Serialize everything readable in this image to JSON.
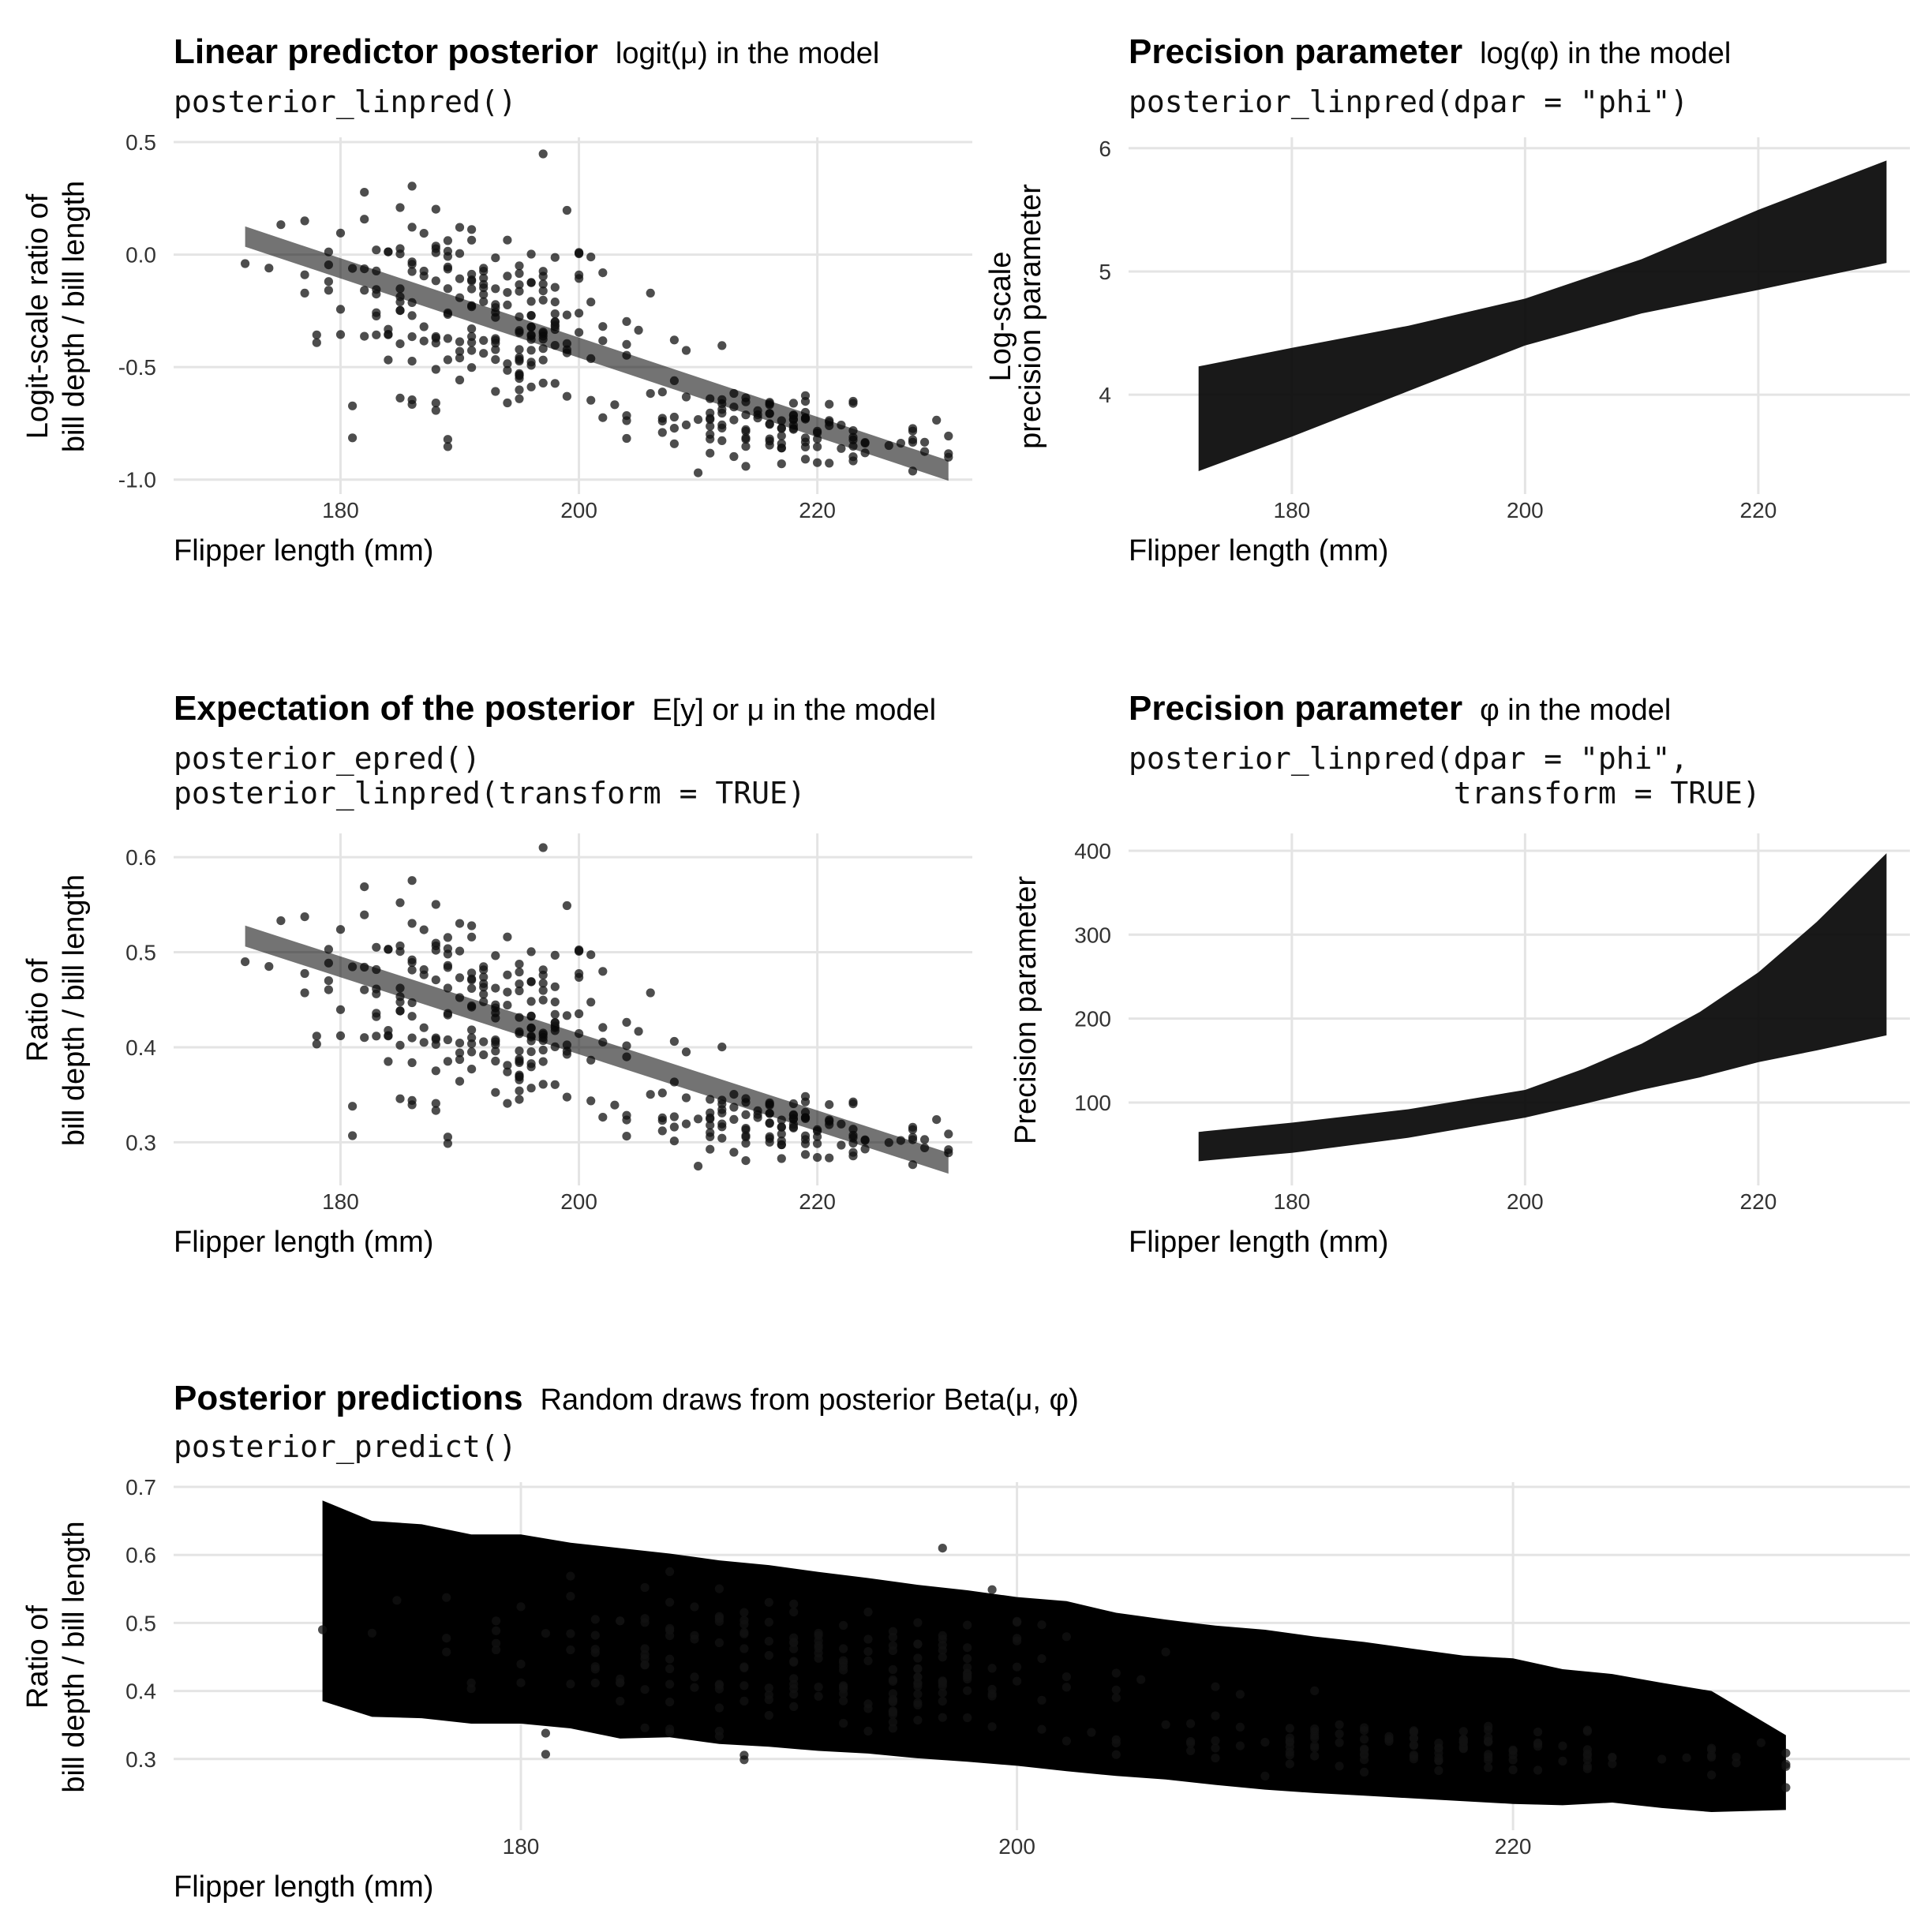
{
  "colors": {
    "panel1_line": "#E27B4B",
    "panel1_band": "#E98A5B",
    "panel2_line": "#FBA98A",
    "panel2_band": "#FDBEA7",
    "panel3_line": "#C74E57",
    "panel3_band": "#D46A6F",
    "panel4_line": "#FB8F8E",
    "panel4_band": "#FDB8B7",
    "panel5_line": "#7A4C86",
    "panel5_band": "#A48AA8",
    "points": "#111111"
  },
  "chart_data": [
    {
      "id": "p1",
      "type": "line",
      "title": "Linear predictor posterior",
      "subtitle": "logit(μ) in the model",
      "code": [
        "posterior_linpred()"
      ],
      "xlabel": "Flipper length (mm)",
      "ylabel": [
        "Logit-scale ratio of",
        "bill depth / bill length"
      ],
      "xlim": [
        166,
        233
      ],
      "ylim": [
        -1.05,
        0.5
      ],
      "xticks": [
        180,
        200,
        220
      ],
      "yticks": [
        -1.0,
        -0.5,
        0.0,
        0.5
      ],
      "ytick_labels": [
        "-1.0",
        "-0.5",
        "0.0",
        "0.5"
      ],
      "points_kind": "logit",
      "fit": {
        "x": [
          172,
          231
        ],
        "y": [
          0.08,
          -0.96
        ],
        "band": [
          0.045,
          0.045
        ]
      },
      "grid": true,
      "legend": "none"
    },
    {
      "id": "p2",
      "type": "area",
      "title": "Precision parameter",
      "subtitle": "log(φ) in the model",
      "code": [
        "posterior_linpred(dpar = \"phi\")"
      ],
      "xlabel": "Flipper length (mm)",
      "ylabel": [
        "Log-scale",
        "precision parameter"
      ],
      "xlim": [
        166,
        233
      ],
      "ylim": [
        3.22,
        6.05
      ],
      "xticks": [
        180,
        200,
        220
      ],
      "yticks": [
        4,
        5,
        6
      ],
      "ytick_labels": [
        "4",
        "5",
        "6"
      ],
      "band_series": {
        "x": [
          172,
          180,
          190,
          200,
          210,
          220,
          231
        ],
        "mid": [
          3.83,
          4.03,
          4.3,
          4.58,
          4.88,
          5.2,
          5.56
        ],
        "low": [
          3.38,
          3.66,
          4.03,
          4.4,
          4.66,
          4.85,
          5.07
        ],
        "high": [
          4.23,
          4.38,
          4.56,
          4.78,
          5.1,
          5.5,
          5.9
        ]
      },
      "grid": true,
      "legend": "none"
    },
    {
      "id": "p3",
      "type": "line",
      "title": "Expectation of the posterior",
      "subtitle": "E[y] or μ in the model",
      "code": [
        "posterior_epred()",
        "posterior_linpred(transform = TRUE)"
      ],
      "xlabel": "Flipper length (mm)",
      "ylabel": [
        "Ratio of",
        "bill depth / bill length"
      ],
      "xlim": [
        166,
        233
      ],
      "ylim": [
        0.258,
        0.62
      ],
      "xticks": [
        180,
        200,
        220
      ],
      "yticks": [
        0.3,
        0.4,
        0.5,
        0.6
      ],
      "ytick_labels": [
        "0.3",
        "0.4",
        "0.5",
        "0.6"
      ],
      "points_kind": "ratio",
      "fit": {
        "x": [
          172,
          231
        ],
        "y": [
          0.517,
          0.278
        ],
        "band": [
          0.011,
          0.011
        ]
      },
      "grid": true,
      "legend": "none"
    },
    {
      "id": "p4",
      "type": "area",
      "title": "Precision parameter",
      "subtitle": "φ in the model",
      "code": [
        "posterior_linpred(dpar = \"phi\",",
        "                  transform = TRUE)"
      ],
      "xlabel": "Flipper length (mm)",
      "ylabel": [
        "Precision parameter"
      ],
      "xlim": [
        166,
        233
      ],
      "ylim": [
        5,
        415
      ],
      "xticks": [
        180,
        200,
        220
      ],
      "yticks": [
        100,
        200,
        300,
        400
      ],
      "ytick_labels": [
        "100",
        "200",
        "300",
        "400"
      ],
      "band_series": {
        "x": [
          172,
          180,
          190,
          200,
          205,
          210,
          215,
          220,
          225,
          231
        ],
        "mid": [
          46,
          56,
          74,
          98,
          117,
          141,
          165,
          195,
          228,
          272
        ],
        "low": [
          30,
          40,
          58,
          82,
          98,
          115,
          130,
          148,
          162,
          180
        ],
        "high": [
          65,
          76,
          92,
          115,
          140,
          170,
          208,
          255,
          315,
          397
        ]
      },
      "grid": true,
      "legend": "none"
    },
    {
      "id": "p5",
      "type": "area",
      "title": "Posterior predictions",
      "subtitle": "Random draws from posterior Beta(μ, φ)",
      "code": [
        "posterior_predict()"
      ],
      "xlabel": "Flipper length (mm)",
      "ylabel": [
        "Ratio of",
        "bill depth / bill length"
      ],
      "xlim": [
        166,
        236
      ],
      "ylim": [
        0.2,
        0.7
      ],
      "xticks": [
        180,
        200,
        220
      ],
      "yticks": [
        0.3,
        0.4,
        0.5,
        0.6,
        0.7
      ],
      "ytick_labels": [
        "0.3",
        "0.4",
        "0.5",
        "0.6",
        "0.7"
      ],
      "points_kind": "ratio",
      "band_series": {
        "x": [
          172,
          174,
          176,
          178,
          180,
          182,
          184,
          186,
          188,
          190,
          192,
          194,
          196,
          198,
          200,
          202,
          204,
          206,
          208,
          210,
          212,
          214,
          216,
          218,
          220,
          222,
          224,
          226,
          228,
          231
        ],
        "mid": [
          0.516,
          0.508,
          0.502,
          0.498,
          0.49,
          0.482,
          0.472,
          0.466,
          0.458,
          0.448,
          0.438,
          0.43,
          0.42,
          0.41,
          0.4,
          0.391,
          0.381,
          0.373,
          0.363,
          0.355,
          0.347,
          0.34,
          0.332,
          0.326,
          0.318,
          0.311,
          0.305,
          0.299,
          0.292,
          0.28
        ],
        "low": [
          0.385,
          0.362,
          0.36,
          0.352,
          0.352,
          0.345,
          0.33,
          0.332,
          0.322,
          0.318,
          0.312,
          0.308,
          0.301,
          0.296,
          0.29,
          0.282,
          0.275,
          0.27,
          0.262,
          0.255,
          0.25,
          0.246,
          0.242,
          0.238,
          0.234,
          0.232,
          0.236,
          0.228,
          0.222,
          0.225
        ],
        "high": [
          0.68,
          0.65,
          0.645,
          0.63,
          0.63,
          0.618,
          0.61,
          0.602,
          0.592,
          0.585,
          0.575,
          0.566,
          0.556,
          0.548,
          0.538,
          0.532,
          0.515,
          0.505,
          0.496,
          0.49,
          0.48,
          0.472,
          0.462,
          0.452,
          0.448,
          0.432,
          0.425,
          0.412,
          0.4,
          0.335
        ]
      },
      "grid": true,
      "legend": "none"
    }
  ]
}
